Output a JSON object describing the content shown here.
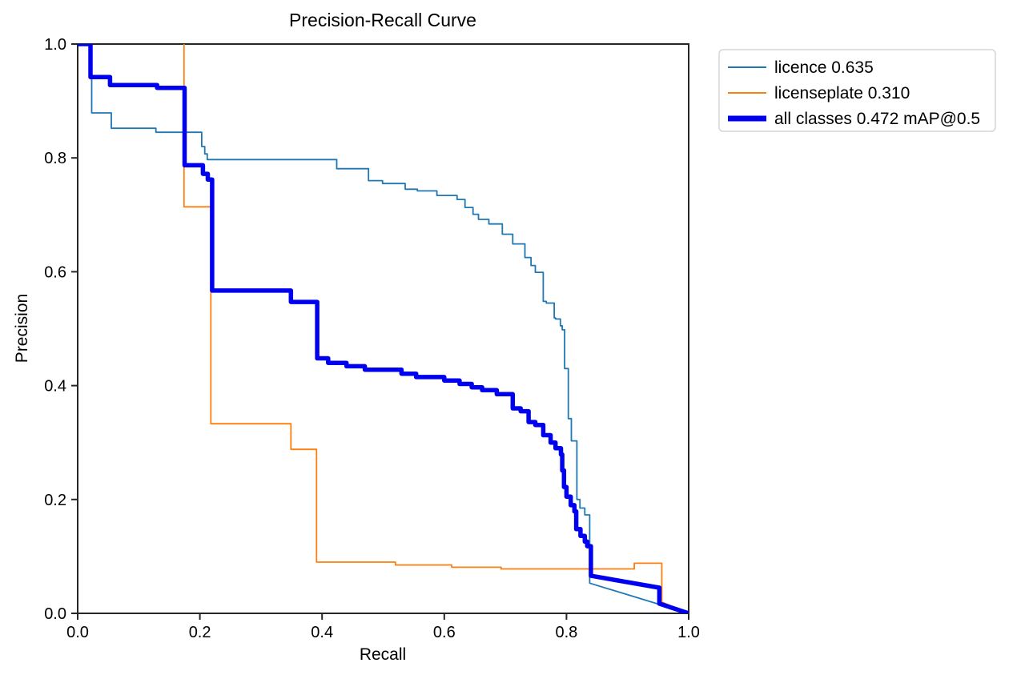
{
  "chart_data": {
    "type": "line",
    "title": "Precision-Recall Curve",
    "xlabel": "Recall",
    "ylabel": "Precision",
    "xlim": [
      0.0,
      1.0
    ],
    "ylim": [
      0.0,
      1.0
    ],
    "grid": false,
    "x_axis": {
      "tick_values": [
        0.0,
        0.2,
        0.4,
        0.6,
        0.8,
        1.0
      ],
      "tick_labels": [
        "0.0",
        "0.2",
        "0.4",
        "0.6",
        "0.8",
        "1.0"
      ]
    },
    "y_axis": {
      "tick_values": [
        0.0,
        0.2,
        0.4,
        0.6,
        0.8,
        1.0
      ],
      "tick_labels": [
        "0.0",
        "0.2",
        "0.4",
        "0.6",
        "0.8",
        "1.0"
      ]
    },
    "legend": {
      "position": "upper right",
      "entries": [
        {
          "label": "licence 0.635",
          "color": "#1f77b4",
          "line_width": 2
        },
        {
          "label": "licenseplate 0.310",
          "color": "#ff7f0e",
          "line_width": 2
        },
        {
          "label": "all classes 0.472 mAP@0.5",
          "color": "#0000f0",
          "line_width": 7
        }
      ]
    },
    "series": [
      {
        "name": "licence",
        "ap": 0.635,
        "color": "#1f77b4",
        "line_width": 1.8,
        "points": [
          [
            0.0,
            1.0
          ],
          [
            0.023,
            1.0
          ],
          [
            0.023,
            0.879
          ],
          [
            0.055,
            0.879
          ],
          [
            0.055,
            0.852
          ],
          [
            0.128,
            0.852
          ],
          [
            0.128,
            0.845
          ],
          [
            0.203,
            0.845
          ],
          [
            0.203,
            0.82
          ],
          [
            0.208,
            0.82
          ],
          [
            0.208,
            0.807
          ],
          [
            0.212,
            0.807
          ],
          [
            0.212,
            0.797
          ],
          [
            0.424,
            0.797
          ],
          [
            0.424,
            0.781
          ],
          [
            0.476,
            0.781
          ],
          [
            0.476,
            0.76
          ],
          [
            0.499,
            0.76
          ],
          [
            0.499,
            0.755
          ],
          [
            0.536,
            0.755
          ],
          [
            0.536,
            0.745
          ],
          [
            0.556,
            0.745
          ],
          [
            0.556,
            0.742
          ],
          [
            0.588,
            0.742
          ],
          [
            0.588,
            0.734
          ],
          [
            0.621,
            0.734
          ],
          [
            0.621,
            0.727
          ],
          [
            0.634,
            0.727
          ],
          [
            0.634,
            0.713
          ],
          [
            0.647,
            0.713
          ],
          [
            0.647,
            0.701
          ],
          [
            0.656,
            0.701
          ],
          [
            0.656,
            0.692
          ],
          [
            0.673,
            0.692
          ],
          [
            0.673,
            0.684
          ],
          [
            0.695,
            0.684
          ],
          [
            0.695,
            0.666
          ],
          [
            0.712,
            0.666
          ],
          [
            0.712,
            0.649
          ],
          [
            0.732,
            0.649
          ],
          [
            0.732,
            0.625
          ],
          [
            0.742,
            0.625
          ],
          [
            0.742,
            0.611
          ],
          [
            0.749,
            0.611
          ],
          [
            0.749,
            0.599
          ],
          [
            0.762,
            0.599
          ],
          [
            0.762,
            0.548
          ],
          [
            0.767,
            0.548
          ],
          [
            0.767,
            0.545
          ],
          [
            0.78,
            0.545
          ],
          [
            0.78,
            0.519
          ],
          [
            0.782,
            0.519
          ],
          [
            0.782,
            0.517
          ],
          [
            0.79,
            0.517
          ],
          [
            0.79,
            0.505
          ],
          [
            0.793,
            0.505
          ],
          [
            0.793,
            0.498
          ],
          [
            0.797,
            0.498
          ],
          [
            0.797,
            0.43
          ],
          [
            0.803,
            0.43
          ],
          [
            0.803,
            0.342
          ],
          [
            0.808,
            0.342
          ],
          [
            0.808,
            0.303
          ],
          [
            0.817,
            0.303
          ],
          [
            0.817,
            0.2
          ],
          [
            0.822,
            0.2
          ],
          [
            0.822,
            0.185
          ],
          [
            0.83,
            0.185
          ],
          [
            0.83,
            0.173
          ],
          [
            0.838,
            0.173
          ],
          [
            0.838,
            0.053
          ],
          [
            1.0,
            0.0
          ]
        ]
      },
      {
        "name": "licenseplate",
        "ap": 0.31,
        "color": "#ff7f0e",
        "line_width": 1.8,
        "points": [
          [
            0.174,
            1.0
          ],
          [
            0.174,
            0.714
          ],
          [
            0.218,
            0.714
          ],
          [
            0.218,
            0.333
          ],
          [
            0.349,
            0.333
          ],
          [
            0.349,
            0.288
          ],
          [
            0.391,
            0.288
          ],
          [
            0.391,
            0.09
          ],
          [
            0.52,
            0.09
          ],
          [
            0.52,
            0.085
          ],
          [
            0.612,
            0.085
          ],
          [
            0.612,
            0.081
          ],
          [
            0.693,
            0.081
          ],
          [
            0.693,
            0.078
          ],
          [
            0.911,
            0.078
          ],
          [
            0.911,
            0.088
          ],
          [
            0.956,
            0.088
          ],
          [
            0.956,
            0.02
          ],
          [
            1.0,
            0.0
          ]
        ]
      },
      {
        "name": "all classes",
        "map_0_5": 0.472,
        "color": "#0000f0",
        "line_width": 5.5,
        "points": [
          [
            0.0,
            1.0
          ],
          [
            0.021,
            1.0
          ],
          [
            0.021,
            0.942
          ],
          [
            0.053,
            0.942
          ],
          [
            0.053,
            0.928
          ],
          [
            0.13,
            0.928
          ],
          [
            0.13,
            0.923
          ],
          [
            0.175,
            0.923
          ],
          [
            0.175,
            0.787
          ],
          [
            0.205,
            0.787
          ],
          [
            0.205,
            0.772
          ],
          [
            0.213,
            0.772
          ],
          [
            0.213,
            0.762
          ],
          [
            0.22,
            0.762
          ],
          [
            0.22,
            0.567
          ],
          [
            0.349,
            0.567
          ],
          [
            0.349,
            0.547
          ],
          [
            0.392,
            0.547
          ],
          [
            0.392,
            0.448
          ],
          [
            0.41,
            0.448
          ],
          [
            0.41,
            0.44
          ],
          [
            0.44,
            0.44
          ],
          [
            0.44,
            0.434
          ],
          [
            0.47,
            0.434
          ],
          [
            0.47,
            0.428
          ],
          [
            0.53,
            0.428
          ],
          [
            0.53,
            0.421
          ],
          [
            0.554,
            0.421
          ],
          [
            0.554,
            0.415
          ],
          [
            0.6,
            0.415
          ],
          [
            0.6,
            0.409
          ],
          [
            0.625,
            0.409
          ],
          [
            0.625,
            0.403
          ],
          [
            0.645,
            0.403
          ],
          [
            0.645,
            0.397
          ],
          [
            0.662,
            0.397
          ],
          [
            0.662,
            0.392
          ],
          [
            0.686,
            0.392
          ],
          [
            0.686,
            0.385
          ],
          [
            0.712,
            0.385
          ],
          [
            0.712,
            0.36
          ],
          [
            0.725,
            0.36
          ],
          [
            0.725,
            0.355
          ],
          [
            0.738,
            0.355
          ],
          [
            0.738,
            0.336
          ],
          [
            0.749,
            0.336
          ],
          [
            0.749,
            0.331
          ],
          [
            0.762,
            0.331
          ],
          [
            0.762,
            0.313
          ],
          [
            0.774,
            0.313
          ],
          [
            0.774,
            0.3
          ],
          [
            0.782,
            0.3
          ],
          [
            0.782,
            0.29
          ],
          [
            0.791,
            0.29
          ],
          [
            0.791,
            0.279
          ],
          [
            0.793,
            0.279
          ],
          [
            0.793,
            0.251
          ],
          [
            0.796,
            0.251
          ],
          [
            0.796,
            0.222
          ],
          [
            0.8,
            0.222
          ],
          [
            0.8,
            0.205
          ],
          [
            0.807,
            0.205
          ],
          [
            0.807,
            0.19
          ],
          [
            0.813,
            0.19
          ],
          [
            0.813,
            0.179
          ],
          [
            0.816,
            0.179
          ],
          [
            0.816,
            0.148
          ],
          [
            0.823,
            0.148
          ],
          [
            0.823,
            0.136
          ],
          [
            0.83,
            0.136
          ],
          [
            0.83,
            0.126
          ],
          [
            0.834,
            0.126
          ],
          [
            0.834,
            0.118
          ],
          [
            0.84,
            0.118
          ],
          [
            0.84,
            0.066
          ],
          [
            0.952,
            0.045
          ],
          [
            0.952,
            0.017
          ],
          [
            1.0,
            0.0
          ]
        ]
      }
    ]
  }
}
